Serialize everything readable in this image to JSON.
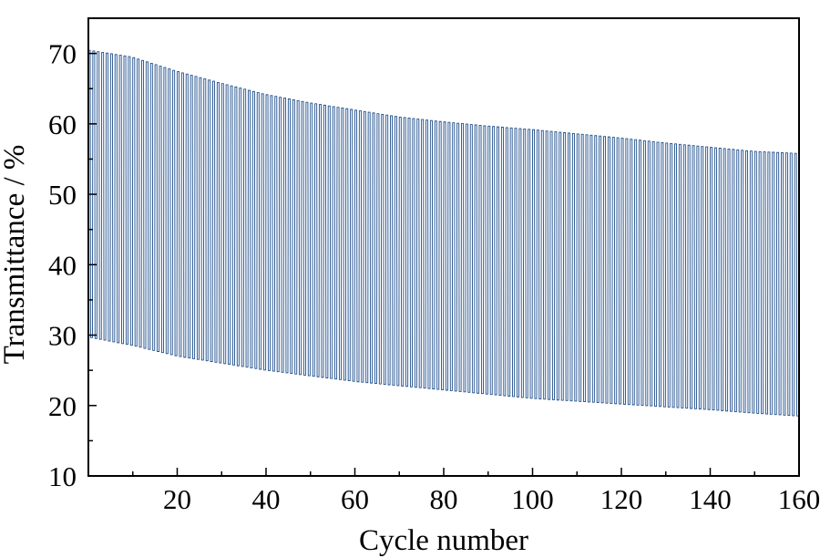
{
  "chart_data": {
    "type": "line",
    "title": "",
    "xlabel": "Cycle number",
    "ylabel": "Transmittance / %",
    "xlim": [
      0,
      160
    ],
    "ylim": [
      10,
      75
    ],
    "x_ticks": [
      20,
      40,
      60,
      80,
      100,
      120,
      140,
      160
    ],
    "x_tick_labels": [
      "20",
      "40",
      "60",
      "80",
      "100",
      "120",
      "140",
      "160"
    ],
    "y_ticks": [
      10,
      20,
      30,
      40,
      50,
      60,
      70
    ],
    "y_tick_labels": [
      "10",
      "20",
      "30",
      "40",
      "50",
      "60",
      "70"
    ],
    "grid": false,
    "legend": "none",
    "series": [
      {
        "color": "#1f4e8c",
        "cycles_total": 160,
        "envelope_cycle": [
          0,
          10,
          20,
          30,
          40,
          50,
          60,
          70,
          80,
          90,
          100,
          110,
          120,
          130,
          140,
          150,
          160
        ],
        "max_transmittance": [
          70.5,
          69.5,
          67.5,
          65.8,
          64.2,
          63.0,
          62.0,
          61.0,
          60.3,
          59.7,
          59.2,
          58.6,
          58.0,
          57.3,
          56.7,
          56.1,
          55.8
        ],
        "min_transmittance": [
          29.7,
          28.5,
          27.0,
          26.0,
          25.0,
          24.2,
          23.4,
          22.8,
          22.2,
          21.6,
          21.0,
          20.6,
          20.2,
          19.8,
          19.4,
          18.9,
          18.5
        ]
      }
    ]
  }
}
